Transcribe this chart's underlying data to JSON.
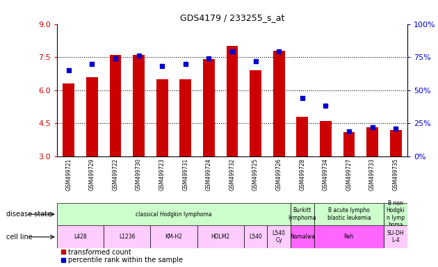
{
  "title": "GDS4179 / 233255_s_at",
  "samples": [
    "GSM499721",
    "GSM499729",
    "GSM499722",
    "GSM499730",
    "GSM499723",
    "GSM499731",
    "GSM499724",
    "GSM499732",
    "GSM499725",
    "GSM499726",
    "GSM499728",
    "GSM499734",
    "GSM499727",
    "GSM499733",
    "GSM499735"
  ],
  "transformed_counts": [
    6.3,
    6.6,
    7.6,
    7.6,
    6.5,
    6.5,
    7.4,
    8.0,
    6.9,
    7.8,
    4.8,
    4.6,
    4.1,
    4.3,
    4.2
  ],
  "percentile_ranks": [
    65,
    70,
    74,
    76,
    68,
    70,
    74,
    79,
    72,
    79,
    44,
    38,
    19,
    22,
    21
  ],
  "ylim_left": [
    3,
    9
  ],
  "ylim_right": [
    0,
    100
  ],
  "yticks_left": [
    3,
    4.5,
    6,
    7.5,
    9
  ],
  "yticks_right": [
    0,
    25,
    50,
    75,
    100
  ],
  "bar_color": "#cc0000",
  "dot_color": "#0000cc",
  "bar_bottom": 3,
  "grid_lines": [
    4.5,
    6.0,
    7.5
  ],
  "tick_label_color_left": "#cc0000",
  "tick_label_color_right": "#0000cc",
  "xlabel_area_bg": "#cccccc",
  "ds_groups": [
    {
      "label": "classical Hodgkin lymphoma",
      "start": 0,
      "end": 9,
      "color": "#ccffcc"
    },
    {
      "label": "Burkitt\nlymphoma",
      "start": 10,
      "end": 10,
      "color": "#ccffcc"
    },
    {
      "label": "B acute lympho\nblastic leukemia",
      "start": 11,
      "end": 13,
      "color": "#ccffcc"
    },
    {
      "label": "B non\nHodgki\nn lymp\nhoma",
      "start": 14,
      "end": 14,
      "color": "#ccffcc"
    }
  ],
  "cl_groups": [
    {
      "label": "L428",
      "start": 0,
      "end": 1,
      "color": "#ffccff"
    },
    {
      "label": "L1236",
      "start": 2,
      "end": 3,
      "color": "#ffccff"
    },
    {
      "label": "KM-H2",
      "start": 4,
      "end": 5,
      "color": "#ffccff"
    },
    {
      "label": "HDLM2",
      "start": 6,
      "end": 7,
      "color": "#ffccff"
    },
    {
      "label": "L540",
      "start": 8,
      "end": 8,
      "color": "#ffccff"
    },
    {
      "label": "L540\nCy",
      "start": 9,
      "end": 9,
      "color": "#ffccff"
    },
    {
      "label": "Namalwa",
      "start": 10,
      "end": 10,
      "color": "#ff66ff"
    },
    {
      "label": "Reh",
      "start": 11,
      "end": 13,
      "color": "#ff66ff"
    },
    {
      "label": "SU-DH\nL-4",
      "start": 14,
      "end": 14,
      "color": "#ffccff"
    }
  ],
  "legend_items": [
    {
      "label": "transformed count",
      "color": "#cc0000"
    },
    {
      "label": "percentile rank within the sample",
      "color": "#0000cc"
    }
  ]
}
